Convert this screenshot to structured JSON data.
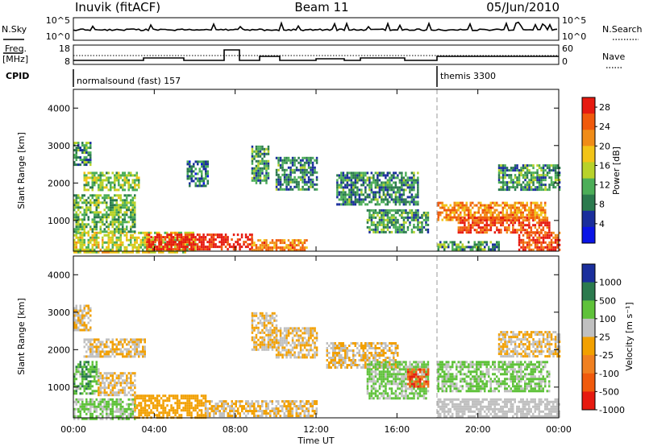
{
  "header": {
    "station": "Inuvik (fitACF)",
    "beam": "Beam 11",
    "date": "05/Jun/2010"
  },
  "labels": {
    "nsky": "N.Sky",
    "nsky_top": "10^5",
    "nsky_bottom": "10^0",
    "nsearch": "N.Search",
    "nsearch_top": "10^5",
    "nsearch_bottom": "10^0",
    "freq_l1": "Freq.",
    "freq_l2": "[MHz]",
    "freq_top": "18",
    "freq_bottom": "8",
    "nave": "Nave",
    "nave_top": "60",
    "nave_bottom": "0",
    "cpid": "CPID"
  },
  "cpid_modes": [
    {
      "name": "normalsound (fast) 157",
      "start_hour": 0
    },
    {
      "name": "themis 3300",
      "start_hour": 18
    }
  ],
  "colors": {
    "power": [
      "#0a14e6",
      "#1a2e9c",
      "#2b7a4e",
      "#4cae58",
      "#b8d22a",
      "#f2c418",
      "#f08c18",
      "#f05a0c",
      "#e61a10"
    ],
    "velocity": [
      "#1a2e9c",
      "#2b7a4e",
      "#5fc23a",
      "#c0c0c0",
      "#f2a000",
      "#f08020",
      "#f05a0c",
      "#e61a10"
    ]
  },
  "chart_data": [
    {
      "type": "heatmap",
      "name": "power",
      "xlabel": "",
      "ylabel": "Slant Range [km]",
      "xlim": [
        0,
        24
      ],
      "ylim": [
        180,
        4500
      ],
      "yticks": [
        1000,
        2000,
        3000,
        4000
      ],
      "colorbar": {
        "label": "Power [dB]",
        "ticks": [
          "4",
          "8",
          "12",
          "16",
          "20",
          "24",
          "28"
        ],
        "range": [
          0,
          30
        ]
      },
      "regions": [
        {
          "t0": 0.0,
          "t1": 6.0,
          "r0": 180,
          "r1": 700,
          "value": 16
        },
        {
          "t0": 3.6,
          "t1": 8.8,
          "r0": 200,
          "r1": 650,
          "value": 29
        },
        {
          "t0": 8.8,
          "t1": 11.5,
          "r0": 200,
          "r1": 500,
          "value": 22
        },
        {
          "t0": 0.0,
          "t1": 3.0,
          "r0": 700,
          "r1": 1700,
          "value": 12
        },
        {
          "t0": 0.5,
          "t1": 3.2,
          "r0": 1800,
          "r1": 2300,
          "value": 14
        },
        {
          "t0": 0.0,
          "t1": 0.8,
          "r0": 2500,
          "r1": 3100,
          "value": 10
        },
        {
          "t0": 5.6,
          "t1": 6.6,
          "r0": 1900,
          "r1": 2600,
          "value": 8
        },
        {
          "t0": 8.8,
          "t1": 9.6,
          "r0": 2000,
          "r1": 3000,
          "value": 10
        },
        {
          "t0": 10.0,
          "t1": 12.0,
          "r0": 1800,
          "r1": 2700,
          "value": 9
        },
        {
          "t0": 13.0,
          "t1": 17.0,
          "r0": 1400,
          "r1": 2300,
          "value": 9
        },
        {
          "t0": 14.5,
          "t1": 17.5,
          "r0": 700,
          "r1": 1300,
          "value": 10
        },
        {
          "t0": 18.0,
          "t1": 23.3,
          "r0": 1000,
          "r1": 1500,
          "value": 22
        },
        {
          "t0": 19.0,
          "t1": 23.5,
          "r0": 700,
          "r1": 1100,
          "value": 26
        },
        {
          "t0": 22.0,
          "t1": 24.0,
          "r0": 200,
          "r1": 700,
          "value": 26
        },
        {
          "t0": 21.0,
          "t1": 24.0,
          "r0": 1800,
          "r1": 2500,
          "value": 10
        },
        {
          "t0": 18.0,
          "t1": 21.0,
          "r0": 200,
          "r1": 450,
          "value": 10
        }
      ]
    },
    {
      "type": "heatmap",
      "name": "velocity",
      "xlabel": "Time UT",
      "ylabel": "Slant Range [km]",
      "xlim": [
        0,
        24
      ],
      "ylim": [
        180,
        4500
      ],
      "xticks": [
        "00:00",
        "04:00",
        "08:00",
        "12:00",
        "16:00",
        "20:00",
        "00:00"
      ],
      "yticks": [
        1000,
        2000,
        3000,
        4000
      ],
      "colorbar": {
        "label": "Velocity [m s⁻¹]",
        "ticks": [
          "1000",
          "500",
          "100",
          "25",
          "-25",
          "-100",
          "-500",
          "-1000"
        ],
        "range": [
          -1000,
          1000
        ]
      },
      "regions": [
        {
          "t0": 0.0,
          "t1": 3.0,
          "r0": 180,
          "r1": 700,
          "value": -300
        },
        {
          "t0": 3.0,
          "t1": 6.5,
          "r0": 200,
          "r1": 800,
          "value": 60
        },
        {
          "t0": 6.5,
          "t1": 12.0,
          "r0": 200,
          "r1": 650,
          "value": 0
        },
        {
          "t0": 0.0,
          "t1": 1.2,
          "r0": 800,
          "r1": 1700,
          "value": -400
        },
        {
          "t0": 1.2,
          "t1": 3.0,
          "r0": 800,
          "r1": 1400,
          "value": 0
        },
        {
          "t0": 0.5,
          "t1": 3.5,
          "r0": 1800,
          "r1": 2300,
          "value": 0
        },
        {
          "t0": 0.0,
          "t1": 0.8,
          "r0": 2500,
          "r1": 3200,
          "value": 0
        },
        {
          "t0": 8.8,
          "t1": 10.0,
          "r0": 2000,
          "r1": 3000,
          "value": 0
        },
        {
          "t0": 10.0,
          "t1": 12.0,
          "r0": 1800,
          "r1": 2600,
          "value": 0
        },
        {
          "t0": 12.5,
          "t1": 16.0,
          "r0": 1500,
          "r1": 2200,
          "value": 0
        },
        {
          "t0": 14.5,
          "t1": 17.5,
          "r0": 700,
          "r1": 1700,
          "value": -300
        },
        {
          "t0": 16.5,
          "t1": 17.5,
          "r0": 1000,
          "r1": 1500,
          "value": 600
        },
        {
          "t0": 18.0,
          "t1": 23.5,
          "r0": 900,
          "r1": 1700,
          "value": -300
        },
        {
          "t0": 18.0,
          "t1": 24.0,
          "r0": 200,
          "r1": 700,
          "value": -150
        },
        {
          "t0": 21.0,
          "t1": 24.0,
          "r0": 1800,
          "r1": 2500,
          "value": 0
        }
      ]
    }
  ]
}
